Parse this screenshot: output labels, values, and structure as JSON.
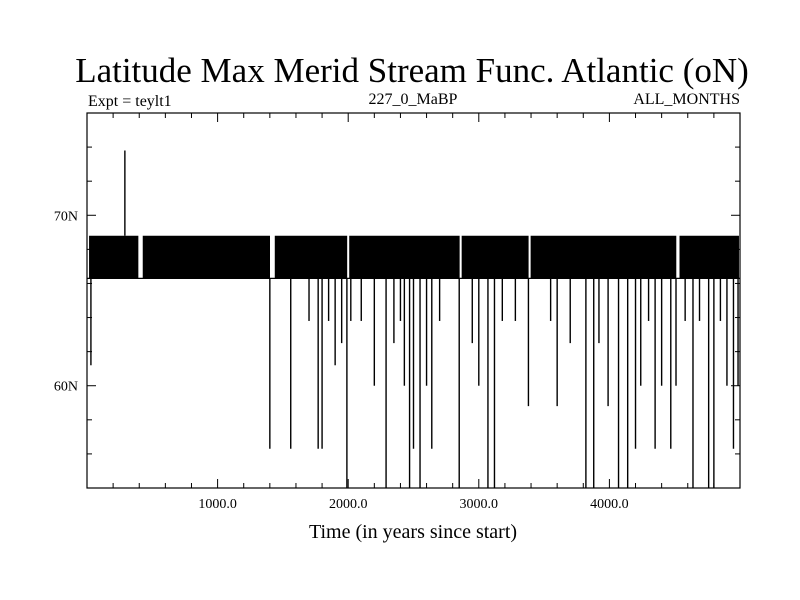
{
  "chart_data": {
    "type": "line",
    "title": "Latitude Max Merid Stream Func. Atlantic (oN)",
    "subtitle_left": "Expt = teylt1",
    "subtitle_center": "227_0_MaBP",
    "subtitle_right": "ALL_MONTHS",
    "xlabel": "Time (in years since start)",
    "ylabel": "",
    "xlim": [
      0,
      5000
    ],
    "ylim": [
      54,
      76
    ],
    "x_ticks": [
      {
        "value": 1000,
        "label": "1000.0"
      },
      {
        "value": 2000,
        "label": "2000.0"
      },
      {
        "value": 3000,
        "label": "3000.0"
      },
      {
        "value": 4000,
        "label": "4000.0"
      }
    ],
    "y_ticks": [
      {
        "value": 70,
        "label": "70N"
      },
      {
        "value": 60,
        "label": "60N"
      }
    ],
    "series": [
      {
        "name": "latitude_max",
        "baseline_low": 66.3,
        "baseline_high": 68.8,
        "spike_up": [
          {
            "x": 290,
            "y": 73.8
          }
        ],
        "drops": [
          {
            "x": 30,
            "y": 61.2
          },
          {
            "x": 1400,
            "y": 56.3
          },
          {
            "x": 1560,
            "y": 56.3
          },
          {
            "x": 1700,
            "y": 63.8
          },
          {
            "x": 1770,
            "y": 56.3
          },
          {
            "x": 1800,
            "y": 56.3
          },
          {
            "x": 1850,
            "y": 63.8
          },
          {
            "x": 1900,
            "y": 61.2
          },
          {
            "x": 1950,
            "y": 62.5
          },
          {
            "x": 1990,
            "y": 54.0
          },
          {
            "x": 2020,
            "y": 63.8
          },
          {
            "x": 2100,
            "y": 63.8
          },
          {
            "x": 2200,
            "y": 60.0
          },
          {
            "x": 2290,
            "y": 54.0
          },
          {
            "x": 2350,
            "y": 62.5
          },
          {
            "x": 2400,
            "y": 63.8
          },
          {
            "x": 2430,
            "y": 60.0
          },
          {
            "x": 2470,
            "y": 54.0
          },
          {
            "x": 2500,
            "y": 56.3
          },
          {
            "x": 2550,
            "y": 54.0
          },
          {
            "x": 2600,
            "y": 60.0
          },
          {
            "x": 2640,
            "y": 56.3
          },
          {
            "x": 2700,
            "y": 63.8
          },
          {
            "x": 2850,
            "y": 54.0
          },
          {
            "x": 2950,
            "y": 62.5
          },
          {
            "x": 3000,
            "y": 60.0
          },
          {
            "x": 3070,
            "y": 54.0
          },
          {
            "x": 3120,
            "y": 54.0
          },
          {
            "x": 3180,
            "y": 63.8
          },
          {
            "x": 3280,
            "y": 63.8
          },
          {
            "x": 3380,
            "y": 58.8
          },
          {
            "x": 3550,
            "y": 63.8
          },
          {
            "x": 3600,
            "y": 58.8
          },
          {
            "x": 3700,
            "y": 62.5
          },
          {
            "x": 3820,
            "y": 54.0
          },
          {
            "x": 3880,
            "y": 54.0
          },
          {
            "x": 3920,
            "y": 62.5
          },
          {
            "x": 3990,
            "y": 58.8
          },
          {
            "x": 4070,
            "y": 54.0
          },
          {
            "x": 4140,
            "y": 54.0
          },
          {
            "x": 4200,
            "y": 56.3
          },
          {
            "x": 4240,
            "y": 60.0
          },
          {
            "x": 4300,
            "y": 63.8
          },
          {
            "x": 4350,
            "y": 56.3
          },
          {
            "x": 4400,
            "y": 60.0
          },
          {
            "x": 4470,
            "y": 56.3
          },
          {
            "x": 4510,
            "y": 60.0
          },
          {
            "x": 4580,
            "y": 63.8
          },
          {
            "x": 4640,
            "y": 54.0
          },
          {
            "x": 4690,
            "y": 63.8
          },
          {
            "x": 4760,
            "y": 54.0
          },
          {
            "x": 4800,
            "y": 54.0
          },
          {
            "x": 4850,
            "y": 63.8
          },
          {
            "x": 4900,
            "y": 60.0
          },
          {
            "x": 4950,
            "y": 56.3
          },
          {
            "x": 4985,
            "y": 60.0
          }
        ]
      }
    ]
  }
}
